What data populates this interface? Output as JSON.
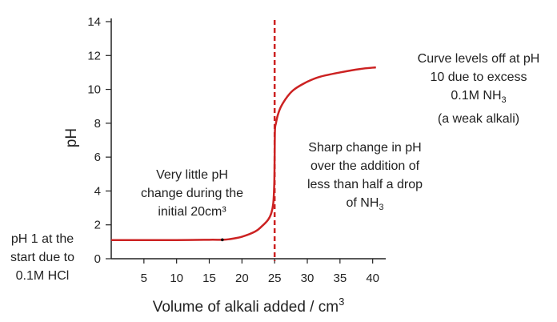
{
  "chart_data": {
    "type": "line",
    "title": "",
    "xlabel": "Volume of alkali added / cm",
    "xlabel_sup": "3",
    "ylabel": "pH",
    "xlim": [
      0,
      42
    ],
    "ylim": [
      0,
      14
    ],
    "x_ticks": [
      5,
      10,
      15,
      20,
      25,
      30,
      35,
      40
    ],
    "y_ticks": [
      0,
      2,
      4,
      6,
      8,
      10,
      12,
      14
    ],
    "grid": false,
    "line_color": "#cc2222",
    "series": [
      {
        "x": [
          0,
          5,
          10,
          15,
          17,
          18,
          20,
          22,
          23,
          24,
          24.5,
          24.8,
          24.95,
          25,
          25.05,
          25.2,
          25.5,
          26,
          27,
          28,
          30,
          32,
          35,
          38,
          40.5
        ],
        "y": [
          1.1,
          1.1,
          1.1,
          1.12,
          1.12,
          1.15,
          1.3,
          1.6,
          1.9,
          2.3,
          2.7,
          3.3,
          4.5,
          6.0,
          7.6,
          8.0,
          8.5,
          9.0,
          9.6,
          10.0,
          10.45,
          10.75,
          11.0,
          11.2,
          11.3
        ]
      }
    ],
    "marker": {
      "x": 17,
      "y": 1.12
    },
    "equivalence_line": {
      "x": 25,
      "color": "#cc2222",
      "style": "dashed"
    }
  },
  "annotations": {
    "start": [
      "pH 1 at the",
      "start due to",
      "0.1M HCl"
    ],
    "little_change": [
      "Very little pH",
      "change during the",
      "initial 20cm³"
    ],
    "sharp_change": [
      "Sharp change in pH",
      "over the addition of",
      "less than half a drop",
      "of NH"
    ],
    "sharp_change_sub": "3",
    "levels_off": [
      "Curve levels off at pH",
      "10 due to excess",
      "0.1M NH",
      "(a weak alkali)"
    ],
    "levels_off_sub": "3"
  }
}
